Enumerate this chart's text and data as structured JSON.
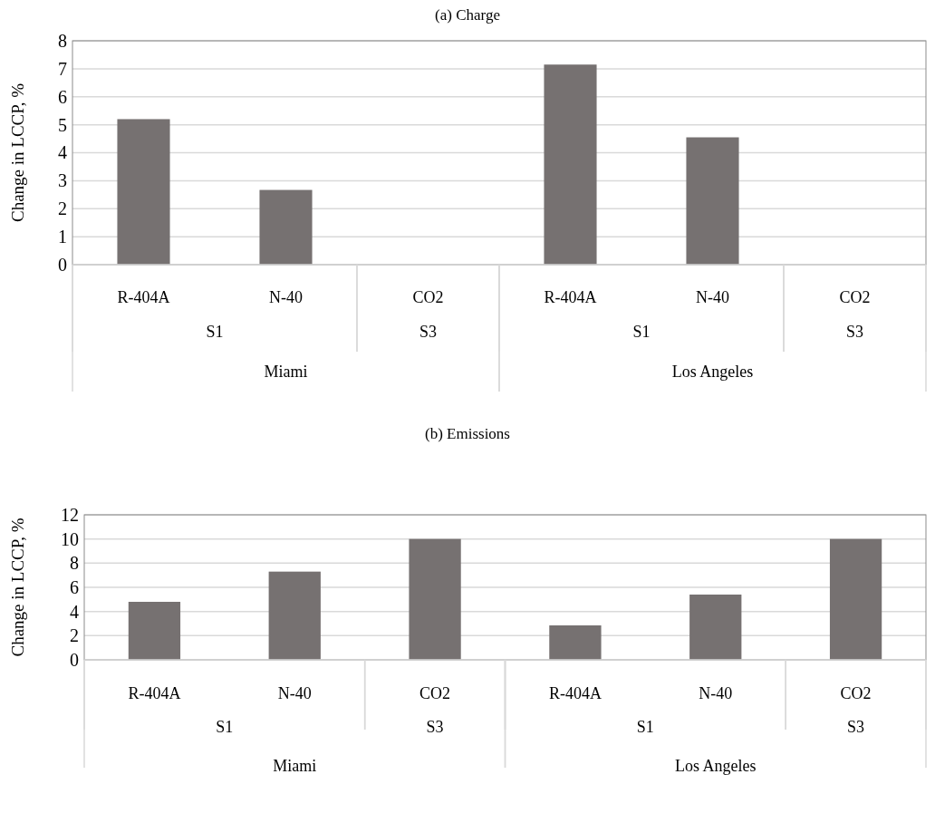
{
  "chart_data": [
    {
      "type": "bar",
      "title": "(a) Charge",
      "ylabel": "Change in LCCP, %",
      "categories": [
        "R-404A",
        "N-40",
        "CO2",
        "R-404A",
        "N-40",
        "CO2"
      ],
      "values": [
        5.2,
        2.67,
        0,
        7.15,
        4.55,
        0
      ],
      "color": "#767171",
      "ylim": [
        0,
        8
      ],
      "yticks": [
        0,
        1,
        2,
        3,
        4,
        5,
        6,
        7,
        8
      ],
      "grid": "y",
      "annotations": [
        "S1",
        "S3",
        "S1",
        "S3",
        "Miami",
        "Los Angeles"
      ]
    },
    {
      "type": "bar",
      "title": "(b) Emissions",
      "ylabel": "Change in LCCP, %",
      "categories": [
        "R-404A",
        "N-40",
        "CO2",
        "R-404A",
        "N-40",
        "CO2"
      ],
      "values": [
        4.8,
        7.3,
        10,
        2.85,
        5.4,
        10
      ],
      "color": "#767171",
      "ylim": [
        0,
        12
      ],
      "yticks": [
        0,
        2,
        4,
        6,
        8,
        10,
        12
      ],
      "grid": "y",
      "annotations": [
        "S1",
        "S3",
        "S1",
        "S3",
        "Miami",
        "Los Angeles"
      ]
    }
  ]
}
